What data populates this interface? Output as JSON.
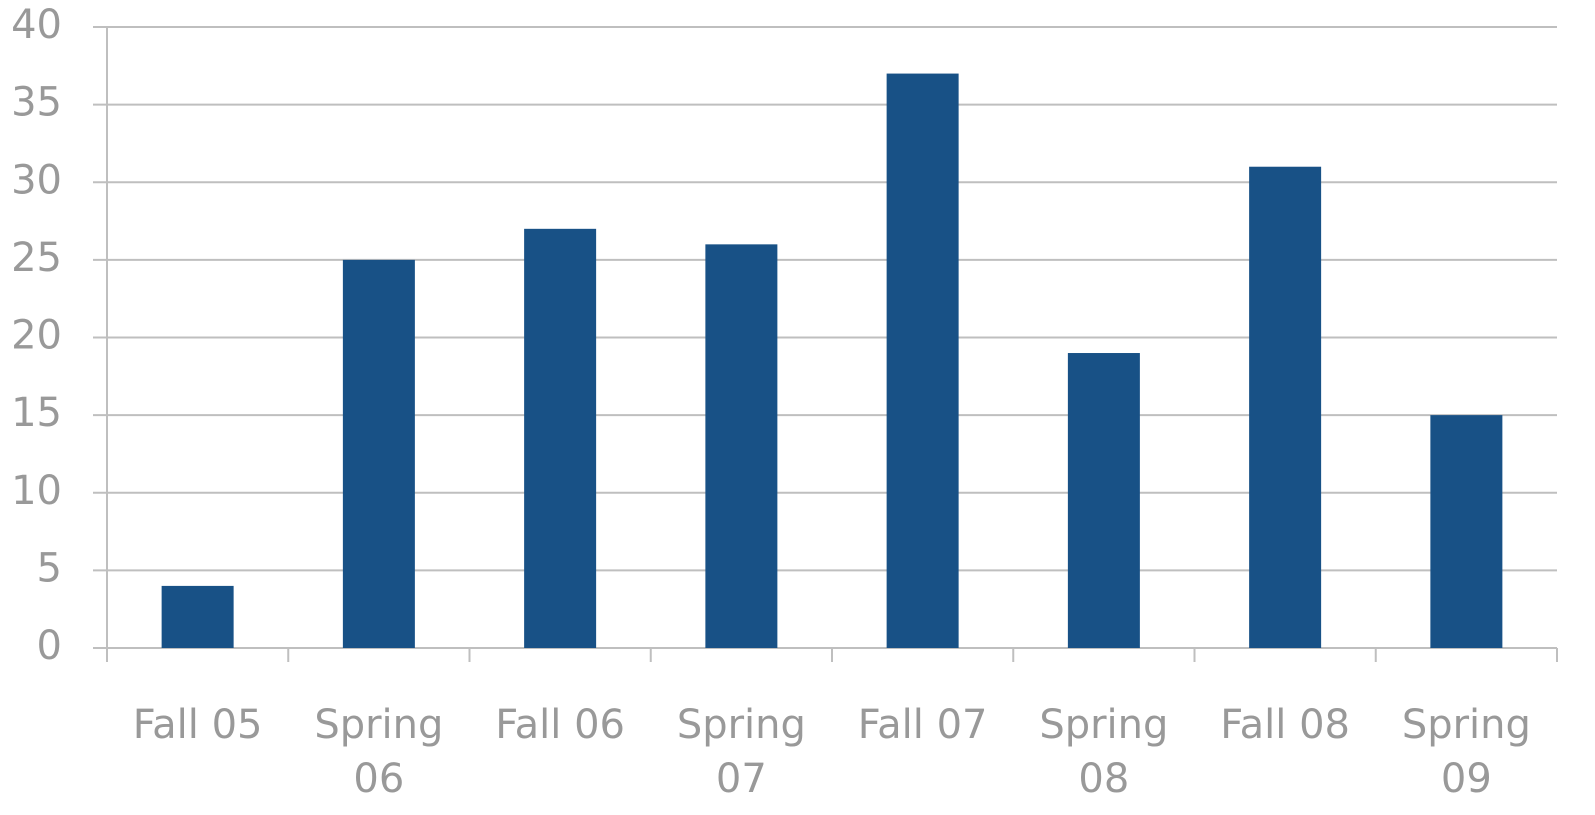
{
  "chart_data": {
    "type": "bar",
    "categories": [
      "Fall 05",
      "Spring 06",
      "Fall 06",
      "Spring 07",
      "Fall 07",
      "Spring 08",
      "Fall 08",
      "Spring 09"
    ],
    "values": [
      4,
      25,
      27,
      26,
      37,
      19,
      31,
      15
    ],
    "color": "#185186",
    "ylim": [
      0,
      40
    ],
    "yticks": [
      0,
      5,
      10,
      15,
      20,
      25,
      30,
      35,
      40
    ],
    "grid": true
  }
}
